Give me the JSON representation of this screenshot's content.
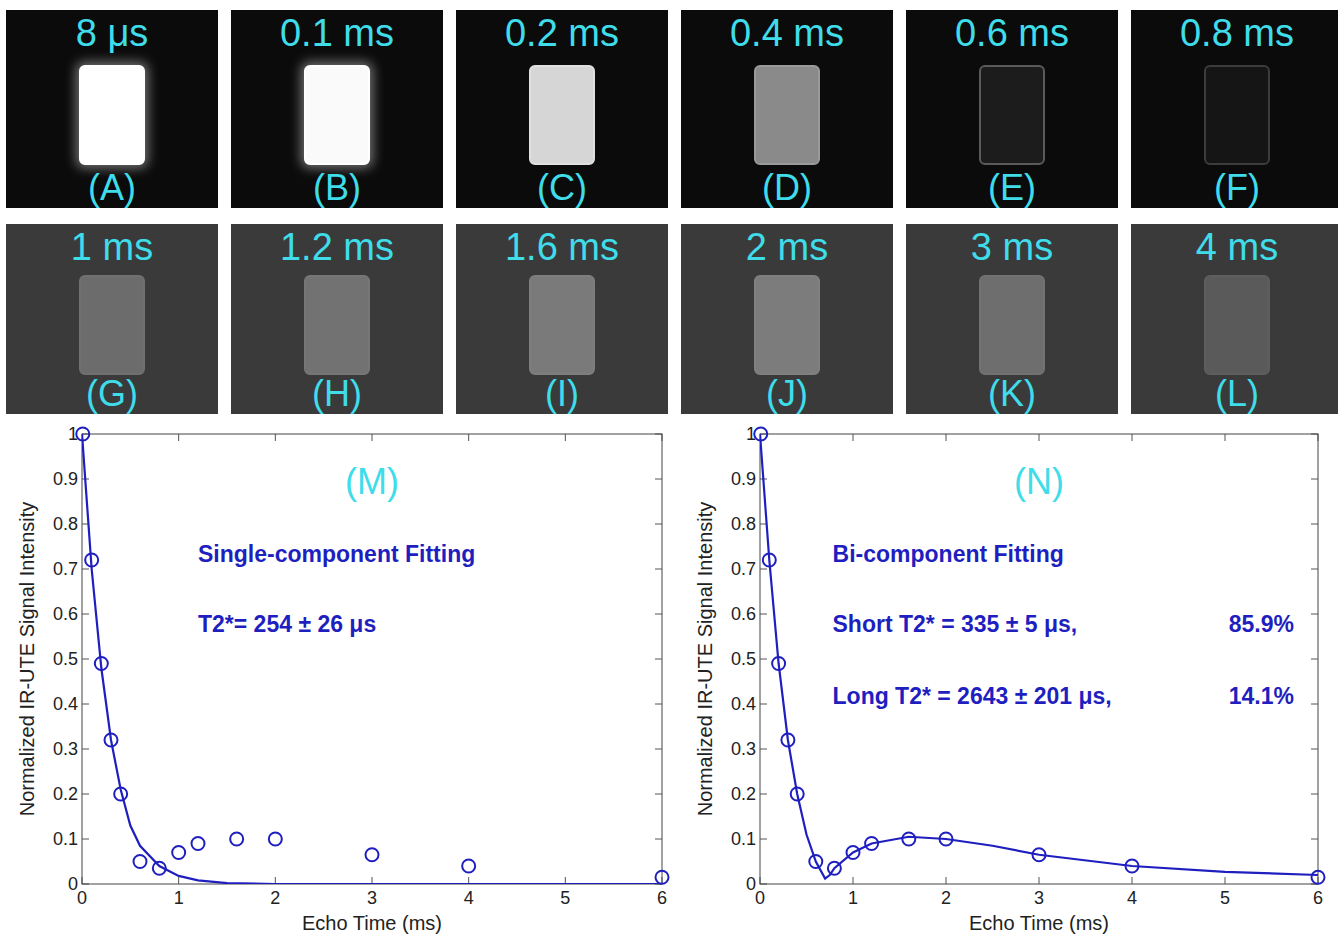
{
  "panels": [
    {
      "time": "8 μs",
      "letter": "(A)"
    },
    {
      "time": "0.1 ms",
      "letter": "(B)"
    },
    {
      "time": "0.2 ms",
      "letter": "(C)"
    },
    {
      "time": "0.4 ms",
      "letter": "(D)"
    },
    {
      "time": "0.6 ms",
      "letter": "(E)"
    },
    {
      "time": "0.8 ms",
      "letter": "(F)"
    },
    {
      "time": "1 ms",
      "letter": "(G)"
    },
    {
      "time": "1.2 ms",
      "letter": "(H)"
    },
    {
      "time": "1.6 ms",
      "letter": "(I)"
    },
    {
      "time": "2 ms",
      "letter": "(J)"
    },
    {
      "time": "3 ms",
      "letter": "(K)"
    },
    {
      "time": "4 ms",
      "letter": "(L)"
    }
  ],
  "chart_data": [
    {
      "type": "scatter",
      "title": "(M)",
      "annotations": [
        "Single-component Fitting",
        "T2*= 254 ± 26 μs"
      ],
      "x_label": "Echo Time (ms)",
      "y_label": "Normalized IR-UTE Signal Intensity",
      "xlim": [
        0,
        6
      ],
      "xticks": [
        0,
        1,
        2,
        3,
        4,
        5,
        6
      ],
      "ylim": [
        0,
        1
      ],
      "yticks": [
        0,
        0.1,
        0.2,
        0.3,
        0.4,
        0.5,
        0.6,
        0.7,
        0.8,
        0.9,
        1
      ],
      "grid": false,
      "series": [
        {
          "type": "scatter",
          "marker": "open-circle",
          "color": "#1f1fbf",
          "x": [
            0.008,
            0.1,
            0.2,
            0.3,
            0.4,
            0.6,
            0.8,
            1,
            1.2,
            1.6,
            2,
            3,
            4,
            6
          ],
          "values": [
            1,
            0.72,
            0.49,
            0.32,
            0.2,
            0.05,
            0.035,
            0.07,
            0.09,
            0.1,
            0.1,
            0.065,
            0.04,
            0.015
          ]
        },
        {
          "type": "line",
          "line_style": "solid",
          "color": "#1f1fbf",
          "x": [
            0,
            0.1,
            0.2,
            0.3,
            0.4,
            0.5,
            0.6,
            0.8,
            1,
            1.2,
            1.5,
            2,
            3,
            4,
            5,
            6
          ],
          "values": [
            1,
            0.7,
            0.48,
            0.32,
            0.21,
            0.13,
            0.085,
            0.04,
            0.018,
            0.008,
            0.002,
            0,
            0,
            0,
            0,
            0
          ]
        }
      ]
    },
    {
      "type": "scatter",
      "title": "(N)",
      "annotations": [
        "Bi-component Fitting",
        "Short T2* = 335 ± 5 μs,",
        "85.9%",
        "Long T2* = 2643 ± 201 μs,",
        "14.1%"
      ],
      "x_label": "Echo Time (ms)",
      "y_label": "Normalized IR-UTE Signal Intensity",
      "xlim": [
        0,
        6
      ],
      "xticks": [
        0,
        1,
        2,
        3,
        4,
        5,
        6
      ],
      "ylim": [
        0,
        1
      ],
      "yticks": [
        0,
        0.1,
        0.2,
        0.3,
        0.4,
        0.5,
        0.6,
        0.7,
        0.8,
        0.9,
        1
      ],
      "grid": false,
      "series": [
        {
          "type": "scatter",
          "marker": "open-circle",
          "color": "#1f1fbf",
          "x": [
            0.008,
            0.1,
            0.2,
            0.3,
            0.4,
            0.6,
            0.8,
            1,
            1.2,
            1.6,
            2,
            3,
            4,
            6
          ],
          "values": [
            1,
            0.72,
            0.49,
            0.32,
            0.2,
            0.05,
            0.035,
            0.07,
            0.09,
            0.1,
            0.1,
            0.065,
            0.04,
            0.015
          ]
        },
        {
          "type": "line",
          "line_style": "solid",
          "color": "#1f1fbf",
          "x": [
            0,
            0.1,
            0.2,
            0.3,
            0.4,
            0.5,
            0.6,
            0.7,
            0.75,
            0.8,
            1,
            1.2,
            1.6,
            2,
            2.5,
            3,
            4,
            5,
            6
          ],
          "values": [
            1,
            0.72,
            0.49,
            0.32,
            0.2,
            0.11,
            0.05,
            0.012,
            0.02,
            0.035,
            0.07,
            0.09,
            0.105,
            0.1,
            0.085,
            0.065,
            0.04,
            0.027,
            0.02
          ]
        }
      ]
    }
  ]
}
